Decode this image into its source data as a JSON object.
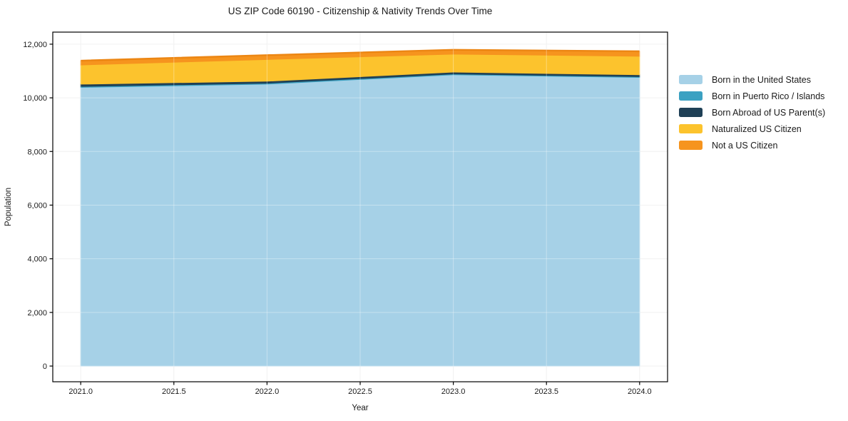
{
  "title": "US ZIP Code 60190 - Citizenship & Nativity Trends Over Time",
  "chart_data": {
    "type": "area",
    "stacked": true,
    "title": "US ZIP Code 60190 - Citizenship & Nativity Trends Over Time",
    "xlabel": "Year",
    "ylabel": "Population",
    "x": [
      2021,
      2022,
      2023,
      2024
    ],
    "series": [
      {
        "name": "Born in the United States",
        "color": "#a6d1e7",
        "values": [
          10390,
          10510,
          10860,
          10760
        ]
      },
      {
        "name": "Born in Puerto Rico / Islands",
        "color": "#3ba1c2",
        "values": [
          35,
          35,
          30,
          30
        ]
      },
      {
        "name": "Born Abroad of US Parent(s)",
        "color": "#1f4056",
        "values": [
          85,
          75,
          70,
          70
        ]
      },
      {
        "name": "Naturalized US Citizen",
        "color": "#fcc32d",
        "values": [
          715,
          810,
          670,
          690
        ]
      },
      {
        "name": "Not a US Citizen",
        "color": "#f6941e",
        "values": [
          160,
          160,
          160,
          185
        ]
      }
    ],
    "totals": [
      11385,
      11590,
      11790,
      11735
    ],
    "xlim": [
      2020.85,
      2024.15
    ],
    "ylim": [
      -585,
      12450
    ],
    "x_ticks": [
      {
        "v": 2021.0,
        "label": "2021.0"
      },
      {
        "v": 2021.5,
        "label": "2021.5"
      },
      {
        "v": 2022.0,
        "label": "2022.0"
      },
      {
        "v": 2022.5,
        "label": "2022.5"
      },
      {
        "v": 2023.0,
        "label": "2023.0"
      },
      {
        "v": 2023.5,
        "label": "2023.5"
      },
      {
        "v": 2024.0,
        "label": "2024.0"
      }
    ],
    "y_ticks": [
      {
        "v": 0,
        "label": "0"
      },
      {
        "v": 2000,
        "label": "2,000"
      },
      {
        "v": 4000,
        "label": "4,000"
      },
      {
        "v": 6000,
        "label": "6,000"
      },
      {
        "v": 8000,
        "label": "8,000"
      },
      {
        "v": 10000,
        "label": "10,000"
      },
      {
        "v": 12000,
        "label": "12,000"
      }
    ],
    "grid": true,
    "legend_position": "right",
    "colors": {
      "grid_under": "#ebebeb",
      "grid_over": "rgba(255,255,255,0.35)",
      "axis": "#000000",
      "tick_text": "#1a1a1a",
      "top_edge": "#ec8613"
    }
  }
}
